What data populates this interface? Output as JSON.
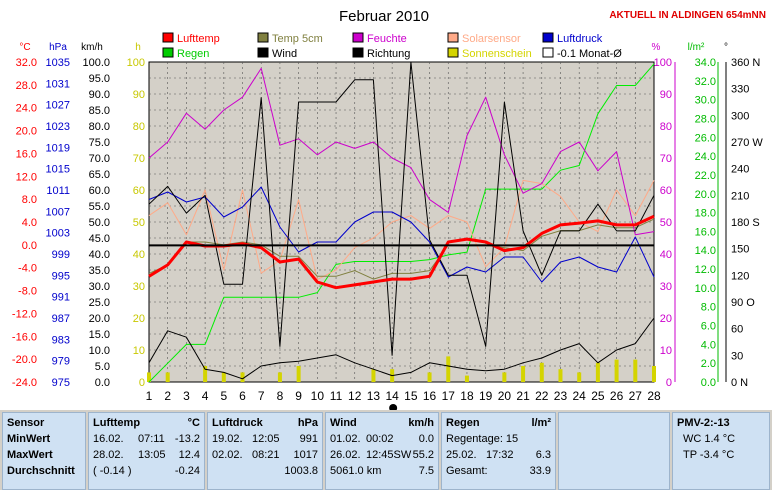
{
  "chart_data": {
    "type": "line",
    "title": "Februar 2010",
    "status_label": "AKTUELL IN ALDINGEN 654mNN",
    "x": [
      1,
      2,
      3,
      4,
      5,
      6,
      7,
      8,
      9,
      10,
      11,
      12,
      13,
      14,
      15,
      16,
      17,
      18,
      19,
      20,
      21,
      22,
      23,
      24,
      25,
      26,
      27,
      28
    ],
    "xlim": [
      1,
      28
    ],
    "axes": {
      "temp": {
        "label": "°C",
        "ticks": [
          "32.0",
          "28.0",
          "24.0",
          "20.0",
          "16.0",
          "12.0",
          "8.0",
          "4.0",
          "0.0",
          "-4.0",
          "-8.0",
          "-12.0",
          "-16.0",
          "-20.0",
          "-24.0"
        ],
        "range": [
          -24,
          32
        ],
        "color": "#ff0000"
      },
      "press": {
        "label": "hPa",
        "ticks": [
          "1035",
          "1031",
          "1027",
          "1023",
          "1019",
          "1015",
          "1011",
          "1007",
          "1003",
          "999",
          "995",
          "991",
          "987",
          "983",
          "979",
          "975"
        ],
        "range": [
          975,
          1039
        ],
        "color": "#0000cc"
      },
      "wind": {
        "label": "km/h",
        "ticks": [
          "100.0",
          "95.0",
          "90.0",
          "85.0",
          "80.0",
          "75.0",
          "70.0",
          "65.0",
          "60.0",
          "55.0",
          "50.0",
          "45.0",
          "40.0",
          "35.0",
          "30.0",
          "25.0",
          "20.0",
          "15.0",
          "10.0",
          "5.0",
          "0.0"
        ],
        "range": [
          0,
          100
        ],
        "color": "#000000"
      },
      "sun": {
        "label": "h",
        "ticks": [
          "100",
          "90",
          "80",
          "70",
          "60",
          "50",
          "40",
          "30",
          "20",
          "10",
          "0"
        ],
        "range": [
          0,
          100
        ],
        "color": "#c8c800"
      },
      "humidity": {
        "label": "%",
        "ticks": [
          "100",
          "90",
          "80",
          "70",
          "60",
          "50",
          "40",
          "30",
          "20",
          "10",
          "0"
        ],
        "range": [
          0,
          100
        ],
        "color": "#cc00cc"
      },
      "rain": {
        "label": "l/m²",
        "ticks": [
          "34.0",
          "32.0",
          "30.0",
          "28.0",
          "26.0",
          "24.0",
          "22.0",
          "20.0",
          "18.0",
          "16.0",
          "14.0",
          "12.0",
          "10.0",
          "8.0",
          "6.0",
          "4.0",
          "2.0",
          "0.0"
        ],
        "range": [
          0,
          34
        ],
        "color": "#00bb00"
      },
      "direction": {
        "label": "°",
        "ticks": [
          "360 N",
          "330",
          "300",
          "270 W",
          "240",
          "210",
          "180 S",
          "150",
          "120",
          "90 O",
          "60",
          "30",
          "0 N"
        ],
        "range": [
          0,
          360
        ],
        "color": "#000000"
      }
    },
    "legend": [
      {
        "name": "Lufttemp",
        "color": "#ff0000",
        "style": "box"
      },
      {
        "name": "Temp 5cm",
        "color": "#808040",
        "style": "box"
      },
      {
        "name": "Feuchte",
        "color": "#cc00cc",
        "style": "box"
      },
      {
        "name": "Solarsensor",
        "color": "#ffaa88",
        "style": "box"
      },
      {
        "name": "Luftdruck",
        "color": "#0000cc",
        "style": "box"
      },
      {
        "name": "Regen",
        "color": "#00cc00",
        "style": "box"
      },
      {
        "name": "Wind",
        "color": "#000000",
        "style": "box"
      },
      {
        "name": "Richtung",
        "color": "#000000",
        "style": "box"
      },
      {
        "name": "Sonnenschein",
        "color": "#d4d400",
        "style": "box"
      },
      {
        "name": "-0.1 Monat-Ø",
        "color": "#000000",
        "style": "outline"
      }
    ],
    "series": [
      {
        "name": "Lufttemp",
        "axis": "temp",
        "color": "#ff0000",
        "width": 3,
        "values": [
          -5.5,
          -3.5,
          0.5,
          -0.2,
          -0.2,
          0.2,
          -0.5,
          -3.0,
          -2.5,
          -6.5,
          -7.5,
          -7.0,
          -6.5,
          -6.0,
          -6.0,
          -5.5,
          0.5,
          1.0,
          0.5,
          -1.0,
          -0.5,
          2.0,
          3.5,
          3.8,
          4.2,
          3.5,
          3.5,
          5.0
        ]
      },
      {
        "name": "Temp 5cm",
        "axis": "temp",
        "color": "#808040",
        "width": 1,
        "values": [
          -5.0,
          -3.5,
          0.5,
          0.5,
          0.0,
          0.5,
          0.0,
          -2.0,
          -2.0,
          -5.5,
          -5.5,
          -4.5,
          -6.0,
          -5.0,
          -5.0,
          -4.5,
          0.0,
          0.0,
          0.0,
          -0.5,
          -1.0,
          1.5,
          2.5,
          2.5,
          3.5,
          3.0,
          3.0,
          4.5
        ]
      },
      {
        "name": "Feuchte",
        "axis": "humidity",
        "color": "#cc00cc",
        "width": 1,
        "values": [
          70,
          75,
          84,
          79,
          85,
          89,
          98,
          74,
          76,
          71,
          75,
          73,
          75,
          70,
          67,
          57,
          53,
          77,
          89,
          71,
          59,
          62,
          72,
          75,
          66,
          72,
          46,
          47
        ]
      },
      {
        "name": "Solarsensor",
        "axis": "humidity",
        "color": "#ffaa88",
        "width": 1,
        "values": [
          52,
          56,
          46,
          60,
          35,
          60,
          34,
          38,
          57,
          32,
          35,
          42,
          45,
          50,
          52,
          48,
          52,
          50,
          36,
          42,
          63,
          62,
          58,
          50,
          47,
          60,
          52,
          63
        ]
      },
      {
        "name": "Luftdruck",
        "axis": "press",
        "color": "#0000cc",
        "width": 1,
        "values": [
          1011.5,
          1013,
          1011,
          1012,
          1008,
          1010,
          1014,
          1006,
          1001,
          1003,
          1003,
          1007,
          1009,
          1009,
          1007,
          1003,
          996,
          998,
          997,
          1000,
          1000,
          995,
          999,
          1000,
          998,
          997,
          1004,
          996
        ]
      },
      {
        "name": "Regen",
        "axis": "rain",
        "color": "#00ee00",
        "width": 1,
        "values": [
          0.0,
          2.0,
          4.0,
          4.0,
          9.0,
          9.0,
          9.0,
          9.0,
          9.0,
          9.5,
          12.5,
          12.8,
          12.8,
          12.8,
          12.8,
          13.0,
          13.5,
          13.8,
          20.5,
          20.5,
          20.5,
          20.5,
          22.5,
          23.0,
          28.5,
          31.5,
          31.5,
          33.8
        ]
      },
      {
        "name": "Wind",
        "axis": "wind",
        "color": "#000000",
        "width": 1,
        "values": [
          6,
          16,
          14,
          4,
          3,
          1,
          5,
          6,
          6.5,
          7.5,
          8.5,
          6,
          4,
          2,
          3,
          6,
          5,
          4,
          3.5,
          4,
          6,
          7.5,
          10,
          12,
          6,
          10,
          12,
          20
        ]
      },
      {
        "name": "Richtung",
        "axis": "direction",
        "color": "#000000",
        "width": 1,
        "values": [
          200,
          220,
          190,
          210,
          110,
          110,
          320,
          40,
          315,
          315,
          315,
          340,
          340,
          30,
          360,
          160,
          120,
          120,
          40,
          315,
          170,
          120,
          170,
          170,
          200,
          170,
          170,
          210
        ]
      }
    ],
    "sunshine_bars": {
      "name": "Sonnenschein",
      "axis": "sun",
      "color": "#d4d400",
      "values": [
        3,
        3,
        0,
        5,
        3,
        3,
        0,
        3,
        5,
        0,
        0,
        0,
        4,
        4,
        0,
        3,
        8,
        2,
        0,
        3,
        5,
        6,
        4,
        3,
        6,
        7,
        7,
        5
      ]
    },
    "reference_line": {
      "name": "-0.1 Monat-Ø",
      "axis": "temp",
      "value": -0.1
    },
    "grid": true
  },
  "stats": {
    "col1": {
      "header": "Sensor",
      "rows": [
        "MinWert",
        "MaxWert",
        "Durchschnitt"
      ]
    },
    "col2": {
      "header": "Lufttemp",
      "unit": "°C",
      "rows": [
        {
          "date": "16.02.",
          "time": "07:11",
          "val": "-13.2"
        },
        {
          "date": "28.02.",
          "time": "13:05",
          "val": "12.4"
        },
        {
          "date": "( -0.14 )",
          "time": "",
          "val": "-0.24"
        }
      ]
    },
    "col3": {
      "header": "Luftdruck",
      "unit": "hPa",
      "rows": [
        {
          "date": "19.02.",
          "time": "12:05",
          "val": "991"
        },
        {
          "date": "02.02.",
          "time": "08:21",
          "val": "1017"
        },
        {
          "date": "",
          "time": "",
          "val": "1003.8"
        }
      ]
    },
    "col4": {
      "header": "Wind",
      "unit": "km/h",
      "rows": [
        {
          "date": "01.02.",
          "time": "00:02",
          "val": "0.0"
        },
        {
          "date": "26.02.",
          "time": "12:45SW",
          "val": "55.2"
        },
        {
          "date": "5061.0 km",
          "time": "",
          "val": "7.5"
        }
      ]
    },
    "col5": {
      "header": "Regen",
      "unit": "l/m²",
      "rows": [
        {
          "date": "Regentage: 15",
          "time": "",
          "val": ""
        },
        {
          "date": "25.02.",
          "time": "17:32",
          "val": "6.3"
        },
        {
          "date": "Gesamt:",
          "time": "",
          "val": "33.9"
        }
      ]
    },
    "col7": {
      "header": "PMV-2:-13",
      "rows": [
        "WC 1.4 °C",
        "TP -3.4 °C"
      ]
    }
  }
}
